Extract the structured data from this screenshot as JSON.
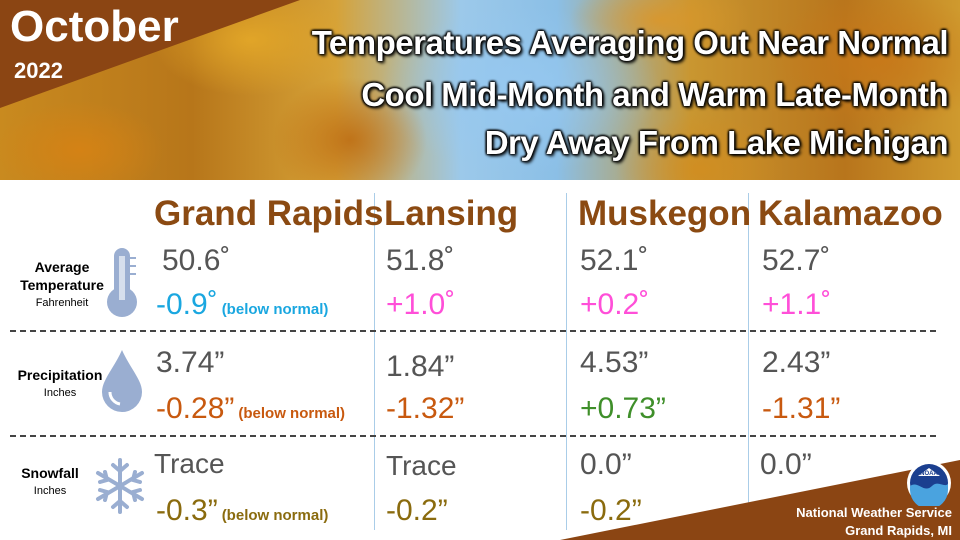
{
  "header": {
    "month": "October",
    "year": "2022",
    "headlines": [
      "Temperatures Averaging Out Near Normal",
      "Cool Mid-Month and Warm Late-Month",
      "Dry Away From Lake Michigan"
    ]
  },
  "cities": [
    "Grand Rapids",
    "Lansing",
    "Muskegon",
    "Kalamazoo"
  ],
  "rows": {
    "temperature": {
      "label": "Average Temperature",
      "unit": "Fahrenheit",
      "icon": "thermometer-icon",
      "values": [
        "50.6˚",
        "51.8˚",
        "52.1˚",
        "52.7˚"
      ],
      "anomalies": [
        "-0.9˚",
        "+1.0˚",
        "+0.2˚",
        "+1.1˚"
      ],
      "note": "(below normal)"
    },
    "precipitation": {
      "label": "Precipitation",
      "unit": "Inches",
      "icon": "raindrop-icon",
      "values": [
        "3.74”",
        "1.84”",
        "4.53”",
        "2.43”"
      ],
      "anomalies": [
        "-0.28”",
        "-1.32”",
        "+0.73”",
        "-1.31”"
      ],
      "note": "(below normal)"
    },
    "snowfall": {
      "label": "Snowfall",
      "unit": "Inches",
      "icon": "snowflake-icon",
      "values": [
        "Trace",
        "Trace",
        "0.0”",
        "0.0”"
      ],
      "anomalies": [
        "-0.3”",
        "-0.2”",
        "-0.2”"
      ],
      "note": "(below normal)"
    }
  },
  "colors": {
    "brown": "#8b4513",
    "city_text": "#8b4a12",
    "below_temp": "#1aa7e0",
    "above_temp": "#ff4fd8",
    "below_precip": "#c8590f",
    "above_precip": "#3f8f2a",
    "snow_anomaly": "#8a6b0e"
  },
  "footer": {
    "agency": "National Weather Service",
    "office": "Grand Rapids, MI",
    "logo": "NOAA"
  }
}
